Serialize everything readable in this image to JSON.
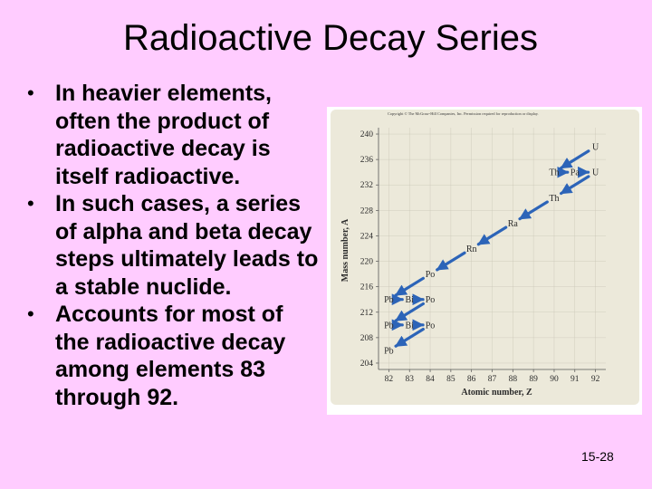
{
  "slide": {
    "title": "Radioactive Decay Series",
    "bullets": [
      "In heavier elements, often the product of radioactive decay is itself radioactive.",
      "In such cases, a series of alpha and beta decay steps ultimately leads to a stable nuclide.",
      "Accounts for most of the radioactive decay among elements 83 through 92."
    ],
    "bullet_symbol": "•",
    "slide_number": "15-28"
  },
  "chart_data": {
    "type": "scatter",
    "title": "",
    "copyright": "Copyright © The McGraw-Hill Companies, Inc. Permission required for reproduction or display.",
    "xlabel": "Atomic number, Z",
    "ylabel": "Mass number, A",
    "xlim": [
      81.5,
      92.5
    ],
    "ylim": [
      203,
      241
    ],
    "xticks": [
      82,
      83,
      84,
      85,
      86,
      87,
      88,
      89,
      90,
      91,
      92
    ],
    "yticks": [
      204,
      208,
      212,
      216,
      220,
      224,
      228,
      232,
      236,
      240
    ],
    "colors": {
      "panel": "#ece9da",
      "arrow": "#2c64b8",
      "text": "#2b2b2b",
      "grid": "#c9c6b6"
    },
    "nuclides": [
      {
        "symbol": "U",
        "z": 92,
        "a": 238
      },
      {
        "symbol": "Th",
        "z": 90,
        "a": 234
      },
      {
        "symbol": "Pa",
        "z": 91,
        "a": 234
      },
      {
        "symbol": "U",
        "z": 92,
        "a": 234
      },
      {
        "symbol": "Th",
        "z": 90,
        "a": 230
      },
      {
        "symbol": "Ra",
        "z": 88,
        "a": 226
      },
      {
        "symbol": "Rn",
        "z": 86,
        "a": 222
      },
      {
        "symbol": "Po",
        "z": 84,
        "a": 218
      },
      {
        "symbol": "Pb",
        "z": 82,
        "a": 214
      },
      {
        "symbol": "Bi",
        "z": 83,
        "a": 214
      },
      {
        "symbol": "Po",
        "z": 84,
        "a": 214
      },
      {
        "symbol": "Pb",
        "z": 82,
        "a": 210
      },
      {
        "symbol": "Bi",
        "z": 83,
        "a": 210
      },
      {
        "symbol": "Po",
        "z": 84,
        "a": 210
      },
      {
        "symbol": "Pb",
        "z": 82,
        "a": 206
      }
    ],
    "decays": [
      {
        "from": [
          92,
          238
        ],
        "to": [
          90,
          234
        ],
        "mode": "alpha"
      },
      {
        "from": [
          90,
          234
        ],
        "to": [
          91,
          234
        ],
        "mode": "beta"
      },
      {
        "from": [
          91,
          234
        ],
        "to": [
          92,
          234
        ],
        "mode": "beta"
      },
      {
        "from": [
          92,
          234
        ],
        "to": [
          90,
          230
        ],
        "mode": "alpha"
      },
      {
        "from": [
          90,
          230
        ],
        "to": [
          88,
          226
        ],
        "mode": "alpha"
      },
      {
        "from": [
          88,
          226
        ],
        "to": [
          86,
          222
        ],
        "mode": "alpha"
      },
      {
        "from": [
          86,
          222
        ],
        "to": [
          84,
          218
        ],
        "mode": "alpha"
      },
      {
        "from": [
          84,
          218
        ],
        "to": [
          82,
          214
        ],
        "mode": "alpha"
      },
      {
        "from": [
          82,
          214
        ],
        "to": [
          83,
          214
        ],
        "mode": "beta"
      },
      {
        "from": [
          83,
          214
        ],
        "to": [
          84,
          214
        ],
        "mode": "beta"
      },
      {
        "from": [
          84,
          214
        ],
        "to": [
          82,
          210
        ],
        "mode": "alpha"
      },
      {
        "from": [
          82,
          210
        ],
        "to": [
          83,
          210
        ],
        "mode": "beta"
      },
      {
        "from": [
          83,
          210
        ],
        "to": [
          84,
          210
        ],
        "mode": "beta"
      },
      {
        "from": [
          84,
          210
        ],
        "to": [
          82,
          206
        ],
        "mode": "alpha"
      }
    ]
  }
}
